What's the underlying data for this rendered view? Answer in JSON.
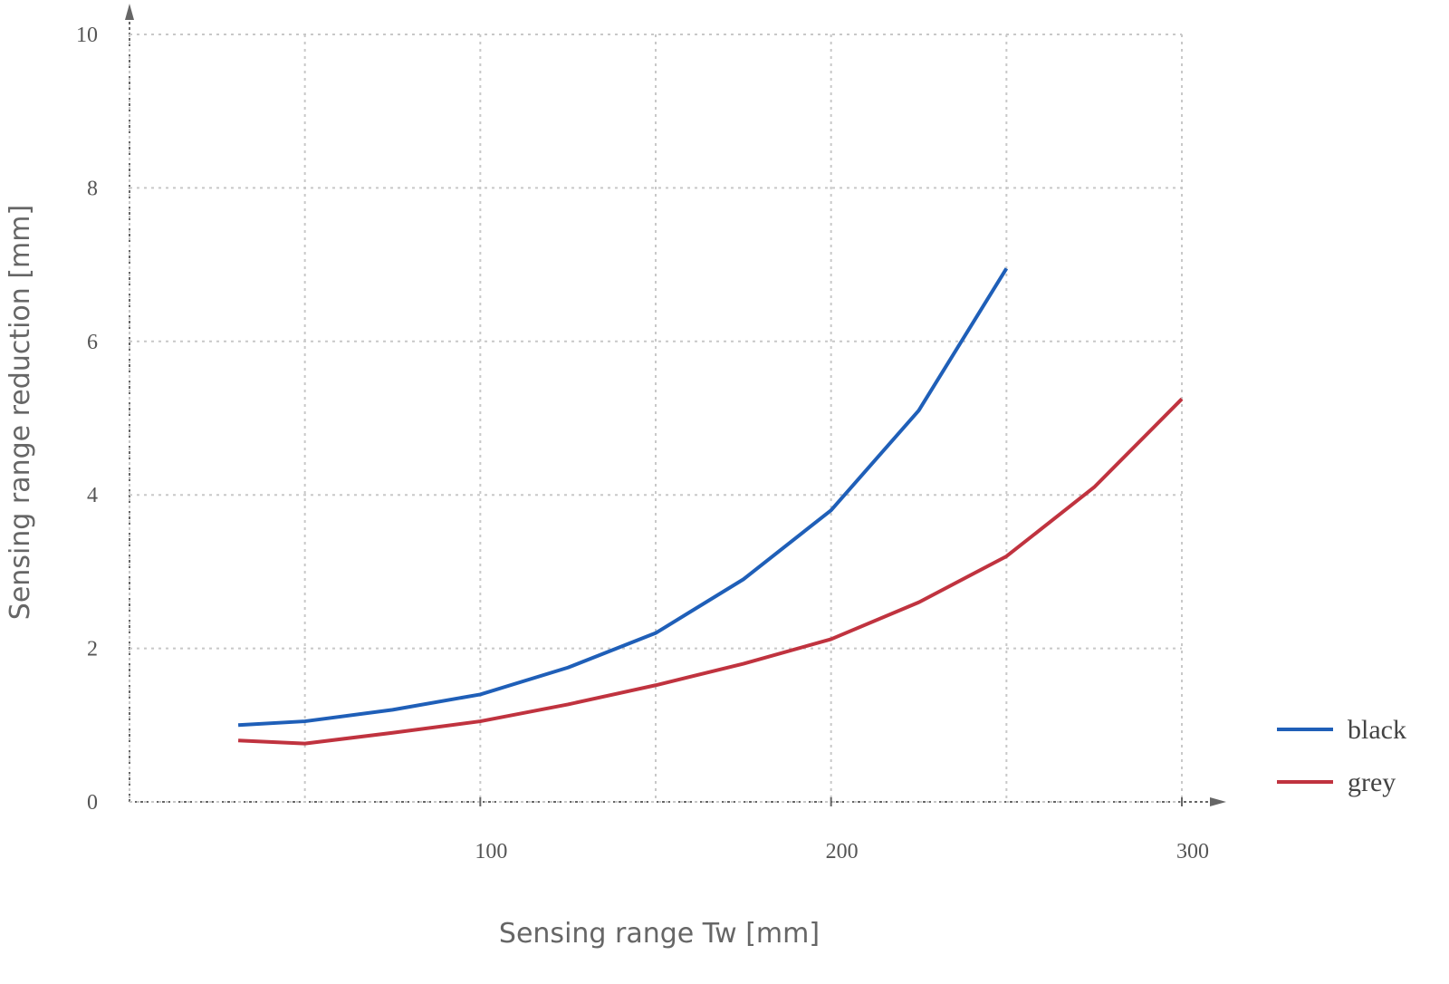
{
  "chart_data": {
    "type": "line",
    "x_label": "Sensing range Tw [mm]",
    "y_label": "Sensing range reduction [mm]",
    "xlim": [
      0,
      300
    ],
    "ylim": [
      0,
      10
    ],
    "xticks": [
      100,
      200,
      300
    ],
    "xgrid": [
      0,
      50,
      100,
      150,
      200,
      250,
      300
    ],
    "yticks": [
      0,
      2,
      4,
      6,
      8,
      10
    ],
    "grid": true,
    "legend": "right",
    "series": [
      {
        "name": "black",
        "color": "#1f5fb8",
        "x": [
          31,
          50,
          75,
          100,
          125,
          150,
          175,
          200,
          225,
          250
        ],
        "values": [
          1.0,
          1.05,
          1.2,
          1.4,
          1.75,
          2.2,
          2.9,
          3.8,
          5.1,
          6.95
        ]
      },
      {
        "name": "grey",
        "color": "#c0333f",
        "x": [
          31,
          50,
          75,
          100,
          125,
          150,
          175,
          200,
          225,
          250,
          275,
          300
        ],
        "values": [
          0.8,
          0.76,
          0.9,
          1.05,
          1.27,
          1.52,
          1.8,
          2.12,
          2.6,
          3.2,
          4.1,
          5.25
        ]
      }
    ]
  }
}
